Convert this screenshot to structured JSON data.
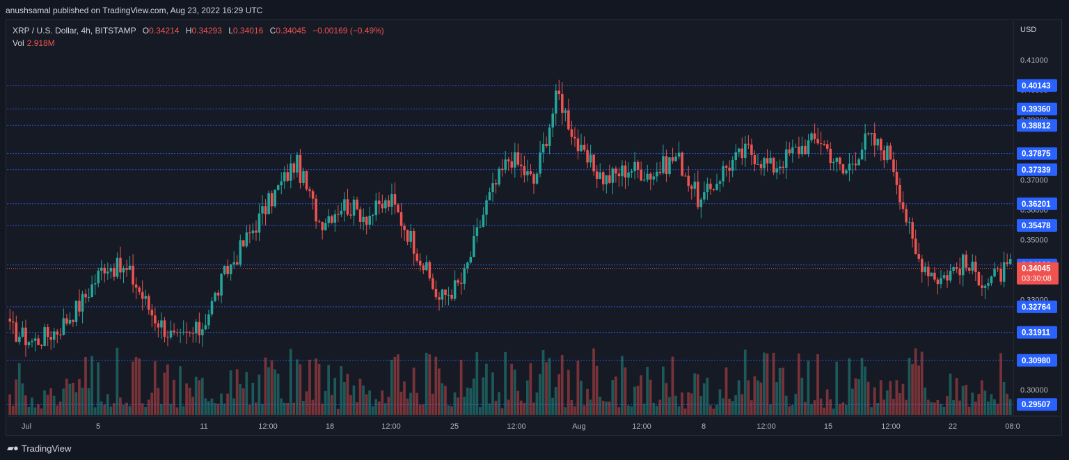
{
  "header": {
    "publisher": "anushsamal published on TradingView.com, Aug 23, 2022 16:29 UTC"
  },
  "legend": {
    "symbol": "XRP / U.S. Dollar, 4h, BITSTAMP",
    "open_key": "O",
    "open": "0.34214",
    "high_key": "H",
    "high": "0.34293",
    "low_key": "L",
    "low": "0.34016",
    "close_key": "C",
    "close": "0.34045",
    "change": "−0.00169 (−0.49%)",
    "vol_key": "Vol",
    "vol": "2.918M"
  },
  "axis": {
    "currency": "USD"
  },
  "footer": {
    "brand": "TradingView"
  },
  "colors": {
    "background": "#131722",
    "up": "#26a69a",
    "down": "#ef5350",
    "level_line": "#2962ff",
    "level_badge": "#2962ff",
    "price_badge": "#ef5350"
  },
  "chart_data": {
    "type": "candlestick",
    "timeframe": "4h",
    "ylim": [
      0.29,
      0.412
    ],
    "y_ticks": [
      "0.41000",
      "0.40000",
      "0.39000",
      "0.38000",
      "0.37000",
      "0.36000",
      "0.35000",
      "0.34000",
      "0.33000",
      "0.32000",
      "0.31000",
      "0.30000"
    ],
    "x_ticks": [
      "Jul",
      "5",
      "11",
      "12:00",
      "18",
      "12:00",
      "25",
      "12:00",
      "Aug",
      "12:00",
      "8",
      "12:00",
      "15",
      "12:00",
      "22",
      "08:0"
    ],
    "levels": [
      "0.40143",
      "0.39360",
      "0.38812",
      "0.37875",
      "0.37339",
      "0.36201",
      "0.35478",
      "0.34160",
      "0.32764",
      "0.31911",
      "0.30980",
      "0.29507"
    ],
    "last_price": "0.34045",
    "countdown": "03:30:08",
    "ohlc_anchors": [
      {
        "date": "Jul 1",
        "close": 0.32
      },
      {
        "date": "Jul 2",
        "close": 0.316
      },
      {
        "date": "Jul 5",
        "close": 0.32
      },
      {
        "date": "Jul 7",
        "close": 0.329
      },
      {
        "date": "Jul 8",
        "close": 0.342
      },
      {
        "date": "Jul 10",
        "close": 0.339
      },
      {
        "date": "Jul 11",
        "close": 0.325
      },
      {
        "date": "Jul 12",
        "close": 0.316
      },
      {
        "date": "Jul 13",
        "close": 0.32
      },
      {
        "date": "Jul 14",
        "close": 0.338
      },
      {
        "date": "Jul 16",
        "close": 0.351
      },
      {
        "date": "Jul 18",
        "close": 0.364
      },
      {
        "date": "Jul 20",
        "close": 0.376
      },
      {
        "date": "Jul 21",
        "close": 0.356
      },
      {
        "date": "Jul 22",
        "close": 0.362
      },
      {
        "date": "Jul 23",
        "close": 0.358
      },
      {
        "date": "Jul 24",
        "close": 0.363
      },
      {
        "date": "Jul 25",
        "close": 0.348
      },
      {
        "date": "Jul 26",
        "close": 0.33
      },
      {
        "date": "Jul 27",
        "close": 0.336
      },
      {
        "date": "Jul 28",
        "close": 0.362
      },
      {
        "date": "Jul 29",
        "close": 0.378
      },
      {
        "date": "Jul 30",
        "close": 0.369
      },
      {
        "date": "Jul 31",
        "close": 0.399
      },
      {
        "date": "Aug 1",
        "close": 0.378
      },
      {
        "date": "Aug 2",
        "close": 0.37
      },
      {
        "date": "Aug 4",
        "close": 0.374
      },
      {
        "date": "Aug 6",
        "close": 0.372
      },
      {
        "date": "Aug 8",
        "close": 0.378
      },
      {
        "date": "Aug 9",
        "close": 0.362
      },
      {
        "date": "Aug 10",
        "close": 0.374
      },
      {
        "date": "Aug 11",
        "close": 0.38
      },
      {
        "date": "Aug 12",
        "close": 0.374
      },
      {
        "date": "Aug 13",
        "close": 0.38
      },
      {
        "date": "Aug 14",
        "close": 0.384
      },
      {
        "date": "Aug 15",
        "close": 0.372
      },
      {
        "date": "Aug 17",
        "close": 0.384
      },
      {
        "date": "Aug 18",
        "close": 0.378
      },
      {
        "date": "Aug 19",
        "close": 0.345
      },
      {
        "date": "Aug 20",
        "close": 0.337
      },
      {
        "date": "Aug 21",
        "close": 0.342
      },
      {
        "date": "Aug 22",
        "close": 0.336
      },
      {
        "date": "Aug 23",
        "close": 0.3405
      }
    ]
  }
}
